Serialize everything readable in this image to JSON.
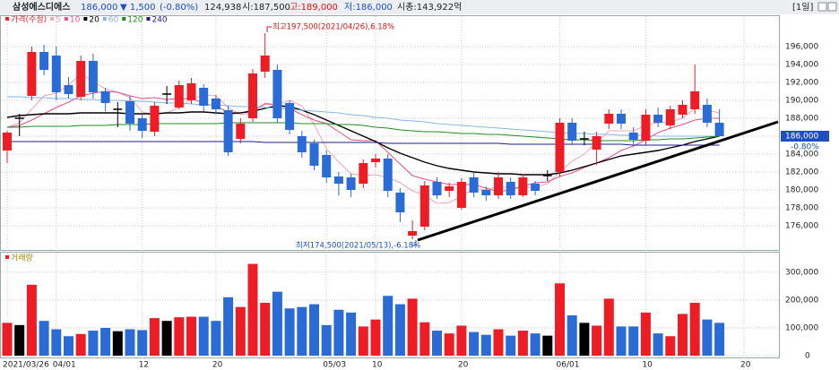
{
  "header": {
    "name": "삼성에스디에스",
    "price": "186,000",
    "change": "▼ 1,500",
    "change_pct": "(-0.80%)",
    "volume": "124,938",
    "open": "시:187,500",
    "high": "고:189,000",
    "low": "저:186,000",
    "cap": "시총:143,922억",
    "period": "[1일]"
  },
  "chart_data": [
    {
      "type": "candlestick",
      "legend_title": "가격(수정)",
      "categories": [
        "2021/03/26",
        null,
        null,
        null,
        "04/01",
        null,
        null,
        null,
        null,
        null,
        null,
        "12",
        null,
        null,
        null,
        null,
        null,
        "20",
        null,
        null,
        null,
        null,
        null,
        null,
        null,
        null,
        "05/03",
        null,
        null,
        null,
        "10",
        null,
        null,
        null,
        null,
        null,
        null,
        "20",
        null,
        null,
        null,
        null,
        null,
        null,
        null,
        "06/01",
        null,
        null,
        null,
        null,
        null,
        null,
        "10",
        null,
        null,
        null,
        null,
        null,
        null,
        null,
        "20"
      ],
      "open": [
        184400,
        188000,
        190500,
        195400,
        195000,
        191700,
        190400,
        194400,
        191000,
        189000,
        189900,
        188000,
        186500,
        190700,
        189200,
        190000,
        191400,
        190200,
        188900,
        185700,
        188000,
        193200,
        193400,
        189700,
        186000,
        185200,
        183900,
        181500,
        181400,
        180700,
        183100,
        183500,
        179700,
        174900,
        175900,
        180900,
        179900,
        178000,
        181400,
        180000,
        179400,
        180900,
        179400,
        180700,
        181600,
        182000,
        187500,
        185700,
        184500,
        187400,
        188500,
        186400,
        185500,
        188400,
        187200,
        188400,
        189000,
        189500,
        187500,
        null,
        null
      ],
      "high": [
        186600,
        188500,
        196000,
        196200,
        196000,
        192600,
        195000,
        195200,
        191400,
        189800,
        190500,
        188400,
        189800,
        191600,
        192200,
        192500,
        191800,
        190600,
        189400,
        188000,
        193500,
        197500,
        194000,
        190000,
        186600,
        185600,
        184400,
        182000,
        181800,
        183400,
        184000,
        184000,
        180200,
        176600,
        181000,
        181400,
        180800,
        181300,
        182000,
        180400,
        182000,
        181400,
        181800,
        181000,
        182200,
        188000,
        188000,
        186500,
        186500,
        189000,
        189000,
        187000,
        189000,
        189200,
        189400,
        190000,
        194000,
        190200,
        189000,
        null,
        null
      ],
      "low": [
        183000,
        186000,
        190000,
        192800,
        190000,
        190200,
        190000,
        190200,
        188800,
        187000,
        186600,
        185800,
        186000,
        189600,
        189000,
        189600,
        188800,
        188400,
        183800,
        185200,
        187600,
        192500,
        187500,
        186200,
        183600,
        182200,
        180800,
        179400,
        179200,
        180200,
        182500,
        179200,
        176400,
        174500,
        175500,
        179000,
        179200,
        177800,
        179200,
        178800,
        179000,
        179000,
        179200,
        179400,
        181000,
        181500,
        185000,
        185000,
        182800,
        186800,
        186800,
        185000,
        185000,
        187000,
        186800,
        188000,
        188500,
        187000,
        186000,
        null,
        null
      ],
      "close": [
        186400,
        188000,
        195400,
        193400,
        190900,
        190700,
        194400,
        190900,
        189700,
        189000,
        187400,
        186600,
        189400,
        190700,
        191700,
        191900,
        189400,
        189000,
        184200,
        187400,
        193000,
        195000,
        188000,
        186700,
        184200,
        182700,
        181400,
        180700,
        180000,
        183000,
        183500,
        179900,
        177500,
        175400,
        180500,
        179400,
        180400,
        180900,
        179700,
        179400,
        181400,
        179400,
        181400,
        179900,
        181600,
        187500,
        185500,
        185700,
        186000,
        188500,
        187400,
        185600,
        188400,
        187500,
        189000,
        189500,
        191000,
        187500,
        186000,
        null,
        null
      ],
      "up_color": "#ee1c25",
      "down_color": "#2a6bd6",
      "flat_color": "#000000",
      "series": [
        {
          "name": "5",
          "color": "#f4a3b8",
          "values": [
            187000,
            187500,
            189000,
            190500,
            190800,
            191700,
            193000,
            192100,
            191300,
            190900,
            190300,
            188700,
            188400,
            188600,
            189200,
            190100,
            190600,
            190500,
            189200,
            188400,
            188600,
            189700,
            189500,
            190000,
            189400,
            187300,
            184600,
            183100,
            181800,
            181600,
            181700,
            181400,
            180800,
            179900,
            179400,
            178500,
            178600,
            179300,
            180200,
            180000,
            180400,
            180200,
            180300,
            180300,
            180700,
            182000,
            183200,
            184000,
            185300,
            186600,
            186600,
            186600,
            187200,
            187500,
            187600,
            188000,
            189100,
            188900,
            188600,
            null,
            null
          ]
        },
        {
          "name": "10",
          "color": "#e0508a",
          "values": [
            187000,
            187200,
            187800,
            188500,
            189200,
            189800,
            190500,
            190800,
            191000,
            190900,
            190500,
            190200,
            190300,
            190100,
            190200,
            190200,
            189700,
            189300,
            188700,
            188600,
            188900,
            189600,
            189500,
            189100,
            188400,
            187800,
            187400,
            186500,
            185600,
            185500,
            185500,
            184200,
            182900,
            181600,
            181200,
            180900,
            180600,
            180600,
            180600,
            180200,
            179800,
            180000,
            180400,
            180800,
            180900,
            181500,
            181900,
            182500,
            183000,
            183600,
            184400,
            184900,
            185600,
            186400,
            186900,
            187300,
            187800,
            188000,
            188000,
            null,
            null
          ]
        },
        {
          "name": "20",
          "color": "#000000",
          "values": [
            188100,
            188300,
            188400,
            188500,
            188500,
            188500,
            188600,
            188600,
            188600,
            188600,
            188500,
            188500,
            188500,
            188600,
            188600,
            188700,
            188700,
            188600,
            188500,
            188600,
            188800,
            189100,
            189400,
            189300,
            188900,
            188400,
            187800,
            187200,
            186600,
            186000,
            185400,
            184700,
            184100,
            183600,
            183100,
            182700,
            182400,
            182200,
            182000,
            181900,
            181800,
            181800,
            181700,
            181700,
            181700,
            181900,
            182200,
            182600,
            183000,
            183400,
            183800,
            184000,
            184200,
            184400,
            184700,
            185000,
            185400,
            185700,
            186000,
            null,
            null
          ]
        },
        {
          "name": "60",
          "color": "#86b6e4",
          "values": [
            190400,
            190400,
            190300,
            190300,
            190200,
            190200,
            190100,
            190100,
            190000,
            190000,
            189900,
            189900,
            189800,
            189700,
            189700,
            189600,
            189500,
            189500,
            189400,
            189300,
            189300,
            189200,
            189100,
            189000,
            188900,
            188800,
            188700,
            188600,
            188400,
            188300,
            188100,
            188000,
            187800,
            187700,
            187600,
            187400,
            187300,
            187200,
            187100,
            187000,
            186900,
            186800,
            186700,
            186600,
            186500,
            186400,
            186300,
            186300,
            186200,
            186200,
            186100,
            186100,
            186100,
            186000,
            186000,
            186000,
            186000,
            186000,
            186000,
            null,
            null
          ]
        },
        {
          "name": "120",
          "color": "#1f8c1f",
          "values": [
            187000,
            187000,
            187100,
            187100,
            187100,
            187100,
            187200,
            187200,
            187200,
            187300,
            187300,
            187300,
            187400,
            187400,
            187400,
            187400,
            187400,
            187400,
            187500,
            187500,
            187500,
            187500,
            187500,
            187500,
            187400,
            187400,
            187400,
            187300,
            187300,
            187200,
            187000,
            186900,
            186700,
            186600,
            186500,
            186500,
            186400,
            186300,
            186300,
            186200,
            186200,
            186100,
            186000,
            185900,
            185800,
            185700,
            185600,
            185600,
            185500,
            185500,
            185500,
            185500,
            185600,
            185600,
            185700,
            185700,
            185800,
            185900,
            186000,
            null,
            null
          ]
        },
        {
          "name": "240",
          "color": "#1c1c8e",
          "values": [
            185400,
            185400,
            185400,
            185400,
            185400,
            185400,
            185400,
            185400,
            185400,
            185400,
            185400,
            185400,
            185400,
            185400,
            185400,
            185400,
            185400,
            185400,
            185400,
            185400,
            185400,
            185300,
            185300,
            185300,
            185300,
            185300,
            185300,
            185300,
            185300,
            185300,
            185300,
            185200,
            185200,
            185200,
            185200,
            185200,
            185200,
            185200,
            185200,
            185200,
            185200,
            185100,
            185100,
            185100,
            185100,
            185100,
            185100,
            185100,
            185100,
            185100,
            185100,
            185000,
            185000,
            185000,
            185000,
            185000,
            185000,
            185000,
            185000,
            null,
            null
          ]
        }
      ],
      "annotations": [
        "최고197,500(2021/04/26),6.18%",
        "최저174,500(2021/05/13),-6.18%"
      ],
      "last_price": {
        "value": 186000,
        "label": "186,000"
      },
      "last_change": "-0.80%",
      "ylim": [
        173300,
        199200
      ],
      "yticks": [
        {
          "value": 176000,
          "label": "176,000"
        },
        {
          "value": 178000,
          "label": "178,000"
        },
        {
          "value": 180000,
          "label": "180,000"
        },
        {
          "value": 182000,
          "label": "182,000"
        },
        {
          "value": 184000,
          "label": "184,000"
        },
        {
          "value": 186000,
          "label": "186,000"
        },
        {
          "value": 188000,
          "label": "188,000"
        },
        {
          "value": 190000,
          "label": "190,000"
        },
        {
          "value": 192000,
          "label": "192,000"
        },
        {
          "value": 194000,
          "label": "194,000"
        },
        {
          "value": 196000,
          "label": "196,000"
        }
      ],
      "grid": true
    },
    {
      "type": "bar",
      "legend_title": "거래량",
      "values": [
        118000,
        110000,
        255000,
        125000,
        95000,
        70000,
        78000,
        90000,
        100000,
        88000,
        95000,
        92000,
        135000,
        125000,
        138000,
        140000,
        140000,
        125000,
        210000,
        175000,
        330000,
        190000,
        230000,
        170000,
        175000,
        185000,
        110000,
        165000,
        155000,
        105000,
        130000,
        215000,
        185000,
        205000,
        120000,
        90000,
        80000,
        108000,
        85000,
        75000,
        95000,
        72000,
        90000,
        80000,
        72000,
        260000,
        145000,
        118000,
        108000,
        205000,
        105000,
        105000,
        155000,
        80000,
        70000,
        150000,
        190000,
        130000,
        118000,
        null,
        null
      ],
      "ylim": [
        0,
        364000
      ],
      "yticks": [
        0,
        {
          "value": 100000,
          "label": "100,000"
        },
        {
          "value": 200000,
          "label": "200,000"
        },
        {
          "value": 300000,
          "label": "300,000"
        }
      ],
      "grid": true
    }
  ]
}
